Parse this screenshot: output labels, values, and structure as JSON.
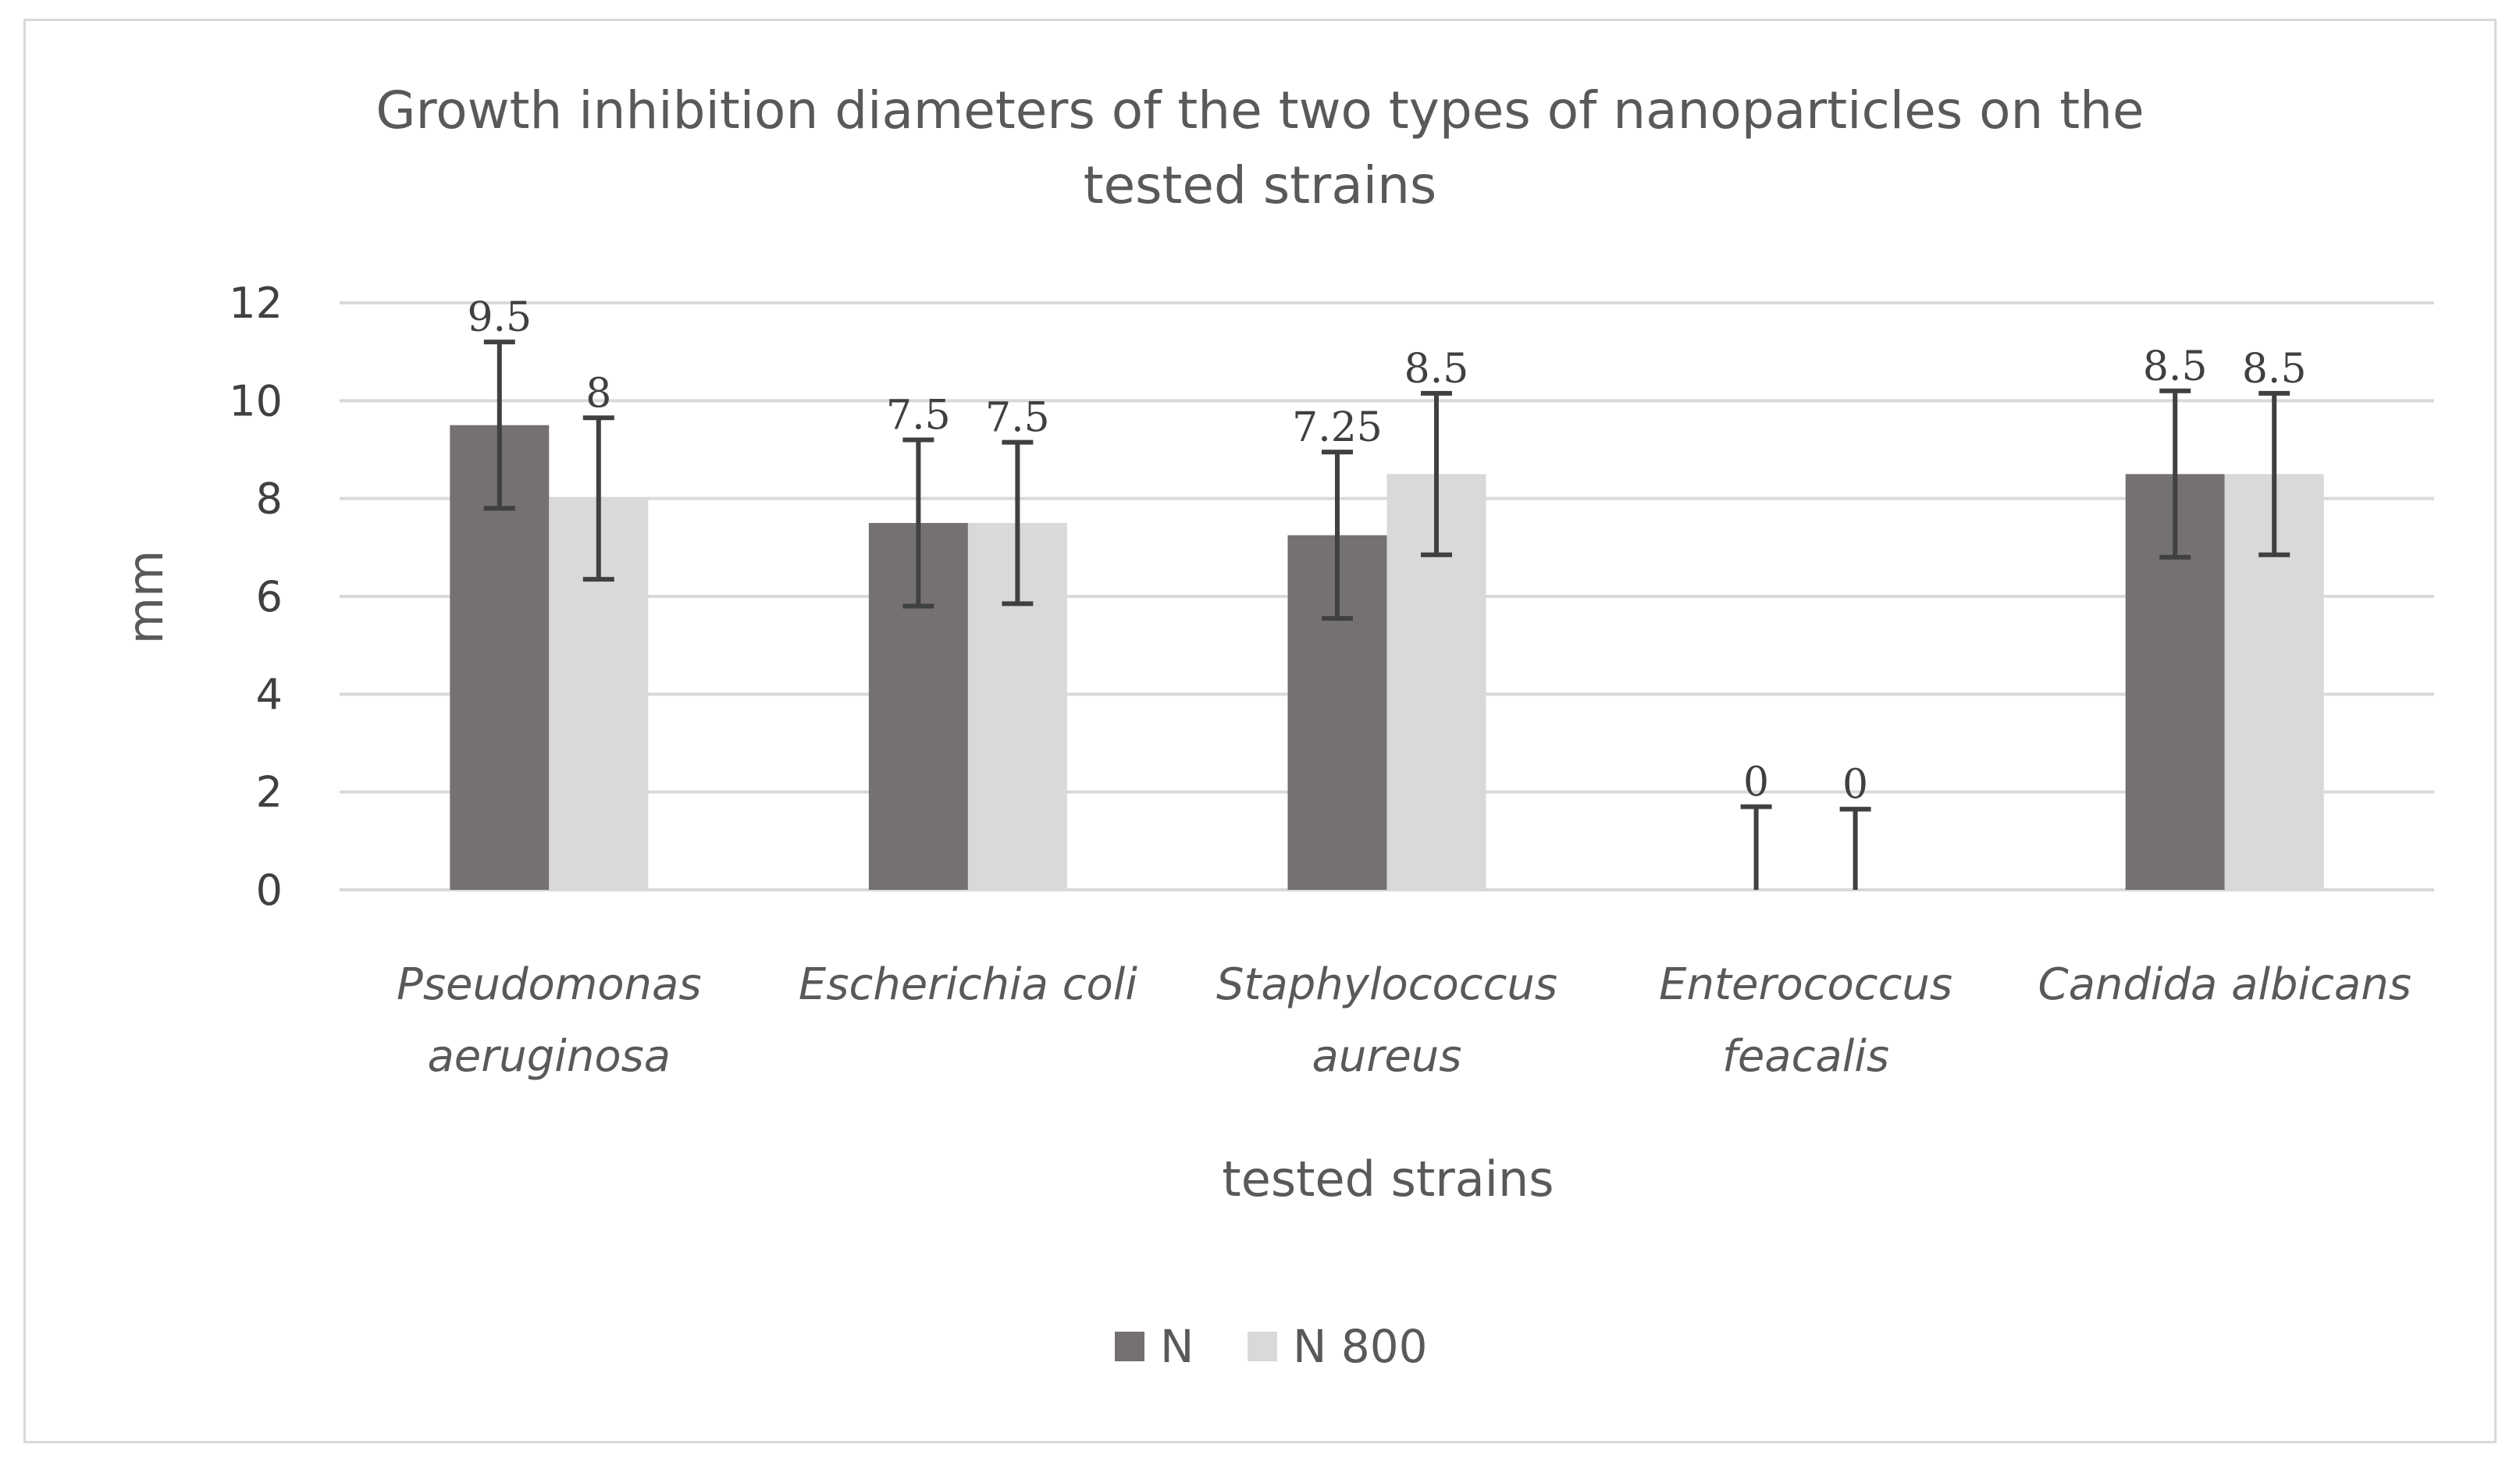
{
  "chart_data": {
    "type": "bar",
    "title": [
      "Growth inhibition diameters of the two types of nanoparticles on the",
      "tested strains"
    ],
    "xlabel": "tested strains",
    "ylabel": "mm",
    "ylim": [
      0,
      12
    ],
    "yticks": [
      "0",
      "2",
      "4",
      "6",
      "8",
      "10",
      "12"
    ],
    "categories": [
      [
        "Pseudomonas",
        "aeruginosa"
      ],
      [
        "Escherichia coli"
      ],
      [
        "Staphylococcus",
        "aureus"
      ],
      [
        "Enterococcus",
        "feacalis"
      ],
      [
        "Candida albicans"
      ]
    ],
    "series": [
      {
        "name": "N",
        "color": "#767171",
        "values": [
          9.5,
          7.5,
          7.25,
          0,
          8.5
        ],
        "labels": [
          "9.5",
          "7.5",
          "7.25",
          "0",
          "8.5"
        ],
        "errors": [
          1.7,
          1.7,
          1.7,
          1.7,
          1.7
        ]
      },
      {
        "name": "N 800",
        "color": "#d9d9d9",
        "values": [
          8,
          7.5,
          8.5,
          0,
          8.5
        ],
        "labels": [
          "8",
          "7.5",
          "8.5",
          "0",
          "8.5"
        ],
        "errors": [
          1.65,
          1.65,
          1.65,
          1.65,
          1.65
        ]
      }
    ],
    "grid": true,
    "legend_position": "bottom"
  }
}
